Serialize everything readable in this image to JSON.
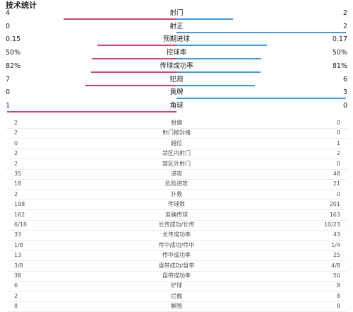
{
  "title": "技术统计",
  "main_stats": [
    {
      "label": "射门",
      "left": 4,
      "right": 2
    },
    {
      "label": "射正",
      "left": 0,
      "right": 2
    },
    {
      "label": "预期进球",
      "left": 0.15,
      "right": 0.17
    },
    {
      "label": "控球率",
      "left": {
        "value": 50,
        "label": "50%"
      },
      "right": {
        "value": 50,
        "label": "50%"
      }
    },
    {
      "label": "传球成功率",
      "left": {
        "value": 82,
        "label": "82%"
      },
      "right": {
        "value": 81,
        "label": "81%"
      }
    },
    {
      "label": "犯规",
      "left": 7,
      "right": 6
    },
    {
      "label": "黄牌",
      "left": 0,
      "right": 3
    },
    {
      "label": "角球",
      "left": 1,
      "right": 0
    }
  ],
  "table": {
    "rows": [
      [
        "2",
        "射偏",
        "0"
      ],
      [
        "2",
        "射门被封堵",
        "0"
      ],
      [
        "0",
        "越位",
        "1"
      ],
      [
        "2",
        "禁区内射门",
        "2"
      ],
      [
        "2",
        "禁区外射门",
        "0"
      ],
      [
        "35",
        "进攻",
        "48"
      ],
      [
        "18",
        "危险进攻",
        "21"
      ],
      [
        "2",
        "扑救",
        "0"
      ],
      [
        "198",
        "传球数",
        "201"
      ],
      [
        "162",
        "准确传球",
        "163"
      ],
      [
        "6/18",
        "长传成功/长传",
        "10/23"
      ],
      [
        "33",
        "长传成功率",
        "43"
      ],
      [
        "1/8",
        "传中成功/传中",
        "1/4"
      ],
      [
        "13",
        "传中成功率",
        "25"
      ],
      [
        "3/8",
        "盘带成功/盘带",
        "4/8"
      ],
      [
        "38",
        "盘带成功率",
        "50"
      ],
      [
        "6",
        "铲球",
        "8"
      ],
      [
        "2",
        "拦截",
        "8"
      ],
      [
        "8",
        "解围",
        "8"
      ]
    ]
  },
  "colors": {
    "left": "#d6417a",
    "right": "#3d9be0"
  }
}
